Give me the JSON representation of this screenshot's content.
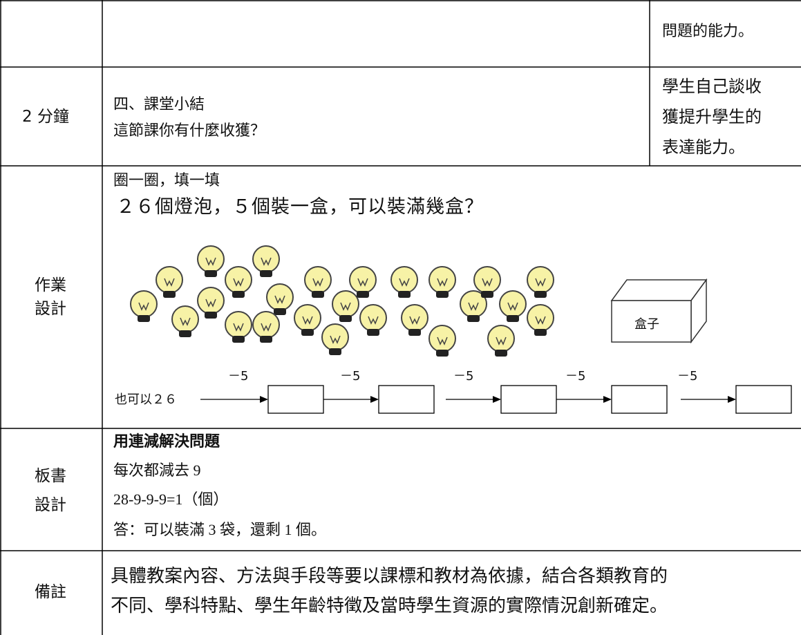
{
  "rows": [
    {
      "right": [
        "問題的能力。"
      ]
    },
    {
      "time": "2 分鐘",
      "content": [
        "四、課堂小結",
        "這節課你有什麼收獲？"
      ],
      "right": [
        "學生自己談收",
        "獲提升學生的",
        "表達能力。"
      ]
    },
    {
      "label": [
        "作業",
        "設計"
      ],
      "content": [
        "圈一圈，填一填",
        "２６個燈泡，５個裝一盒，可以裝滿幾盒？"
      ],
      "box_label": "盒子",
      "chain_start": "也可以２６",
      "steps": [
        "－5",
        "－5",
        "－5",
        "－5",
        "－5"
      ]
    },
    {
      "label": [
        "板書",
        "設計"
      ],
      "content": [
        "用連減解決問題",
        "每次都減去 9",
        "28-9-9-9=1（個）",
        "答：可以裝滿 3 袋，還剩 1 個。"
      ]
    },
    {
      "label": [
        "備註"
      ],
      "content": [
        "具體教案內容、方法與手段等要以課標和教材為依據，結合各類教育的",
        "不同、學科特點、學生年齡特徵及當時學生資源的實際情況創新確定。"
      ]
    }
  ]
}
